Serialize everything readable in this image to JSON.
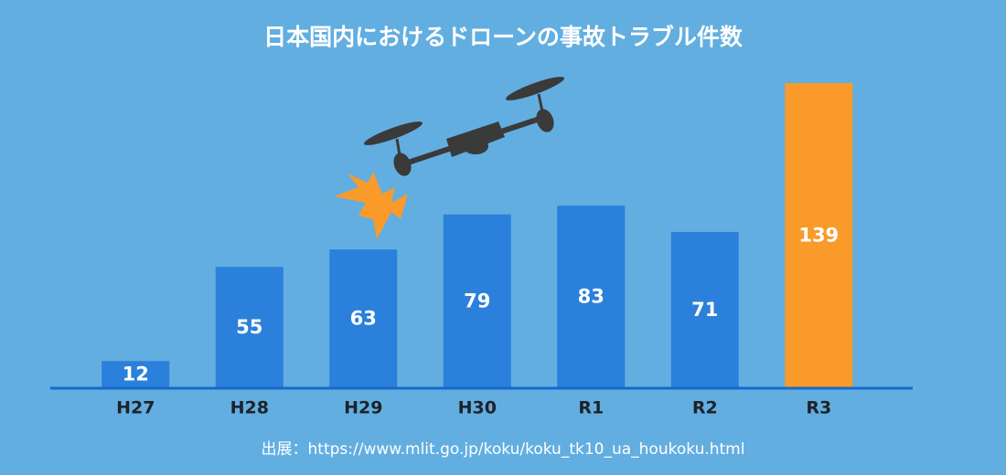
{
  "chart_data": {
    "type": "bar",
    "title": "日本国内におけるドローンの事故トラブル件数",
    "categories": [
      "H27",
      "H28",
      "H29",
      "H30",
      "R1",
      "R2",
      "R3"
    ],
    "values": [
      12,
      55,
      63,
      79,
      83,
      71,
      139
    ],
    "colors": [
      "#2a80da",
      "#2a80da",
      "#2a80da",
      "#2a80da",
      "#2a80da",
      "#2a80da",
      "#f99a2b"
    ],
    "source": "出展：https://www.mlit.go.jp/koku/koku_tk10_ua_houkoku.html"
  }
}
